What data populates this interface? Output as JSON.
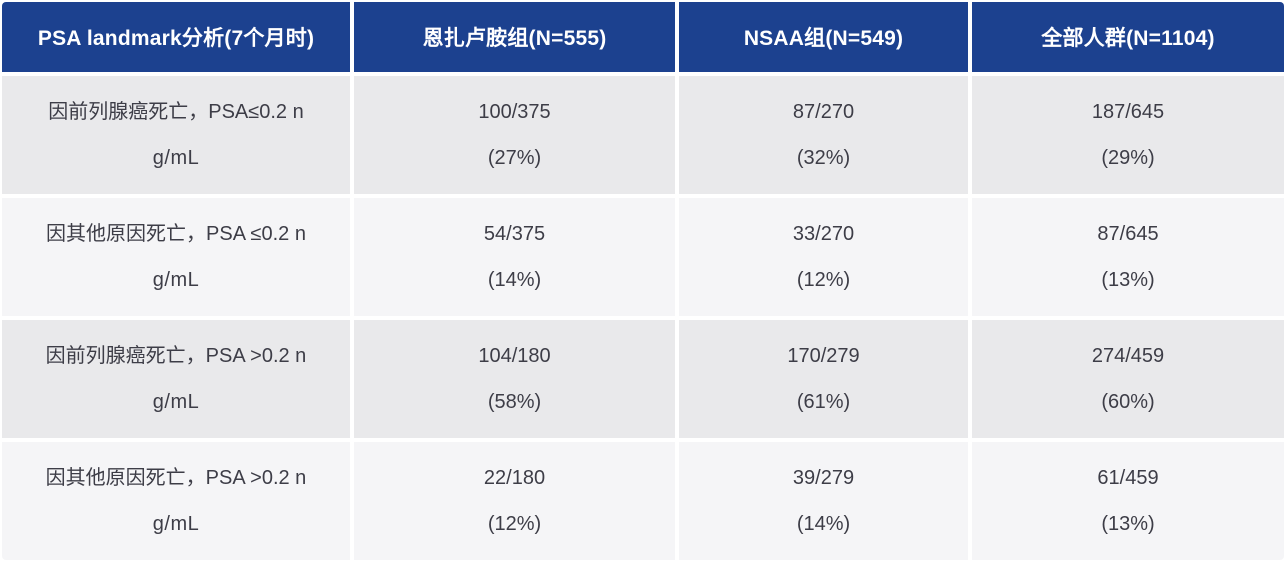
{
  "table": {
    "header": {
      "col0": "PSA landmark分析(7个月时)",
      "col1": "恩扎卢胺组(N=555)",
      "col2": "NSAA组(N=549)",
      "col3": "全部人群(N=1104)"
    },
    "rows": [
      {
        "label_line1": "因前列腺癌死亡，PSA≤0.2 n",
        "label_line2": "g/mL",
        "cells": [
          {
            "count": "100/375",
            "pct": "(27%)"
          },
          {
            "count": "87/270",
            "pct": "(32%)"
          },
          {
            "count": "187/645",
            "pct": "(29%)"
          }
        ]
      },
      {
        "label_line1": "因其他原因死亡，PSA ≤0.2 n",
        "label_line2": "g/mL",
        "cells": [
          {
            "count": "54/375",
            "pct": "(14%)"
          },
          {
            "count": "33/270",
            "pct": "(12%)"
          },
          {
            "count": "87/645",
            "pct": "(13%)"
          }
        ]
      },
      {
        "label_line1": "因前列腺癌死亡，PSA >0.2 n",
        "label_line2": "g/mL",
        "cells": [
          {
            "count": "104/180",
            "pct": "(58%)"
          },
          {
            "count": "170/279",
            "pct": "(61%)"
          },
          {
            "count": "274/459",
            "pct": "(60%)"
          }
        ]
      },
      {
        "label_line1": "因其他原因死亡，PSA >0.2 n",
        "label_line2": "g/mL",
        "cells": [
          {
            "count": "22/180",
            "pct": "(12%)"
          },
          {
            "count": "39/279",
            "pct": "(14%)"
          },
          {
            "count": "61/459",
            "pct": "(13%)"
          }
        ]
      }
    ],
    "colors": {
      "header_bg": "#1c418f",
      "header_text": "#ffffff",
      "row_odd_bg": "#e9e9eb",
      "row_even_bg": "#f5f5f7",
      "body_text": "#3d3d47"
    }
  },
  "chart_data": {
    "type": "table",
    "title": "PSA landmark分析(7个月时)",
    "columns": [
      "PSA landmark分析(7个月时)",
      "恩扎卢胺组(N=555)",
      "NSAA组(N=549)",
      "全部人群(N=1104)"
    ],
    "rows": [
      [
        "因前列腺癌死亡，PSA≤0.2 ng/mL",
        "100/375 (27%)",
        "87/270 (32%)",
        "187/645 (29%)"
      ],
      [
        "因其他原因死亡，PSA ≤0.2 ng/mL",
        "54/375 (14%)",
        "33/270 (12%)",
        "87/645 (13%)"
      ],
      [
        "因前列腺癌死亡，PSA >0.2 ng/mL",
        "104/180 (58%)",
        "170/279 (61%)",
        "274/459 (60%)"
      ],
      [
        "因其他原因死亡，PSA >0.2 ng/mL",
        "22/180 (12%)",
        "39/279 (14%)",
        "61/459 (13%)"
      ]
    ]
  }
}
